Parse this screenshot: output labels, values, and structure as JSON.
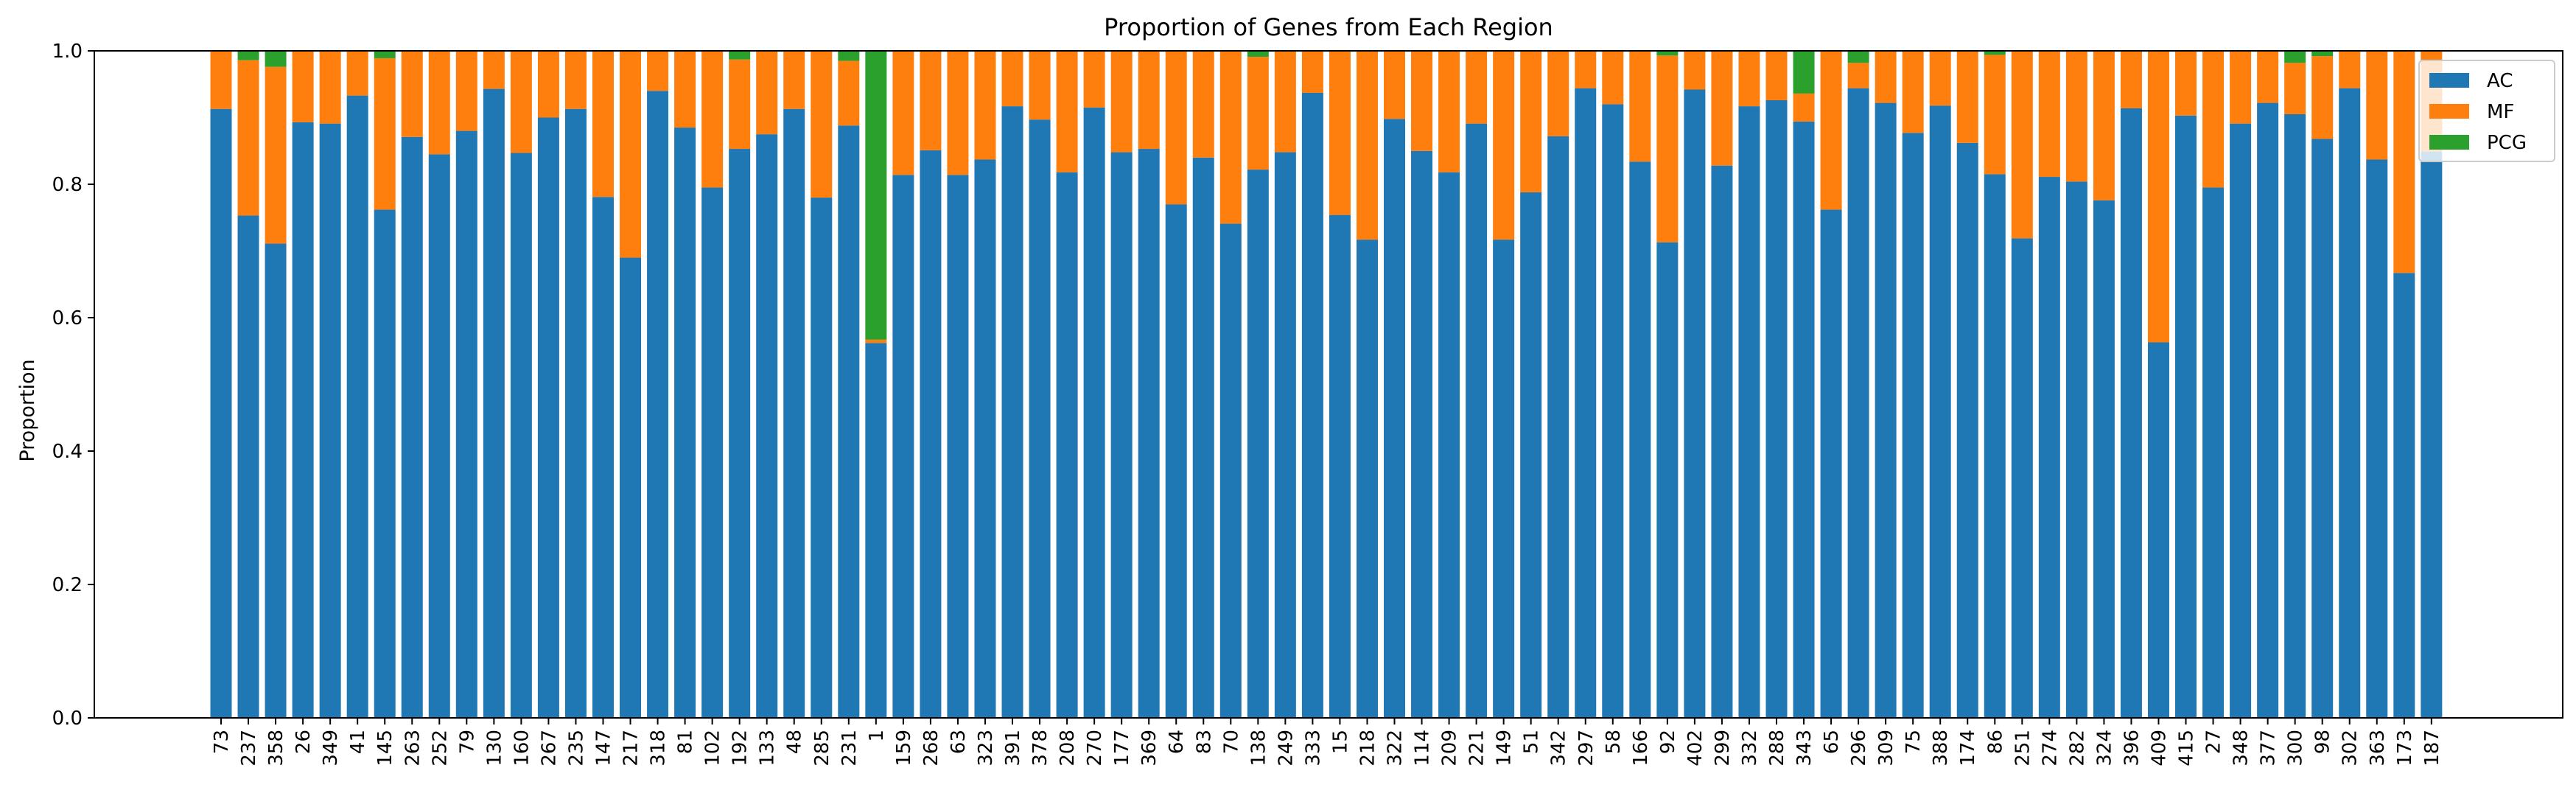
{
  "chart_data": {
    "type": "bar",
    "stacked": true,
    "title": "Proportion of Genes from Each Region",
    "xlabel": "",
    "ylabel": "Proportion",
    "ylim": [
      0,
      1.0
    ],
    "yticks": [
      0.0,
      0.2,
      0.4,
      0.6,
      0.8,
      1.0
    ],
    "ytick_labels": [
      "0.0",
      "0.2",
      "0.4",
      "0.6",
      "0.8",
      "1.0"
    ],
    "legend_position": "top-right",
    "grid": false,
    "categories": [
      "73",
      "237",
      "358",
      "26",
      "349",
      "41",
      "145",
      "263",
      "252",
      "79",
      "130",
      "160",
      "267",
      "235",
      "147",
      "217",
      "318",
      "81",
      "102",
      "192",
      "133",
      "48",
      "285",
      "231",
      "1",
      "159",
      "268",
      "63",
      "323",
      "391",
      "378",
      "208",
      "270",
      "177",
      "369",
      "64",
      "83",
      "70",
      "138",
      "249",
      "333",
      "15",
      "218",
      "322",
      "114",
      "209",
      "221",
      "149",
      "51",
      "342",
      "297",
      "58",
      "166",
      "92",
      "402",
      "299",
      "332",
      "288",
      "343",
      "65",
      "296",
      "309",
      "75",
      "388",
      "174",
      "86",
      "251",
      "274",
      "282",
      "324",
      "396",
      "409",
      "415",
      "27",
      "348",
      "377",
      "300",
      "98",
      "302",
      "363",
      "173",
      "187"
    ],
    "series": [
      {
        "name": "AC",
        "color": "#1f77b4",
        "values": [
          0.913,
          0.753,
          0.711,
          0.893,
          0.891,
          0.933,
          0.762,
          0.871,
          0.845,
          0.88,
          0.943,
          0.847,
          0.9,
          0.913,
          0.781,
          0.69,
          0.94,
          0.885,
          0.795,
          0.853,
          0.875,
          0.913,
          0.78,
          0.888,
          0.562,
          0.814,
          0.851,
          0.814,
          0.837,
          0.917,
          0.897,
          0.818,
          0.915,
          0.848,
          0.853,
          0.77,
          0.84,
          0.741,
          0.822,
          0.848,
          0.937,
          0.754,
          0.717,
          0.898,
          0.85,
          0.818,
          0.891,
          0.717,
          0.788,
          0.872,
          0.944,
          0.92,
          0.834,
          0.713,
          0.942,
          0.828,
          0.917,
          0.926,
          0.894,
          0.762,
          0.944,
          0.922,
          0.877,
          0.918,
          0.862,
          0.815,
          0.719,
          0.811,
          0.804,
          0.776,
          0.914,
          0.563,
          0.903,
          0.795,
          0.891,
          0.922,
          0.905,
          0.868,
          0.944,
          0.837,
          0.667,
          0.849
        ]
      },
      {
        "name": "MF",
        "color": "#ff7f0e",
        "values": [
          0.087,
          0.233,
          0.265,
          0.107,
          0.109,
          0.067,
          0.227,
          0.129,
          0.155,
          0.12,
          0.057,
          0.153,
          0.1,
          0.087,
          0.219,
          0.31,
          0.06,
          0.115,
          0.205,
          0.134,
          0.125,
          0.087,
          0.22,
          0.097,
          0.005,
          0.186,
          0.149,
          0.186,
          0.163,
          0.083,
          0.103,
          0.182,
          0.085,
          0.152,
          0.147,
          0.23,
          0.16,
          0.259,
          0.169,
          0.152,
          0.063,
          0.246,
          0.283,
          0.102,
          0.15,
          0.182,
          0.109,
          0.283,
          0.212,
          0.128,
          0.056,
          0.08,
          0.166,
          0.28,
          0.058,
          0.172,
          0.083,
          0.074,
          0.042,
          0.238,
          0.038,
          0.078,
          0.123,
          0.082,
          0.138,
          0.179,
          0.281,
          0.189,
          0.196,
          0.224,
          0.086,
          0.437,
          0.097,
          0.205,
          0.109,
          0.078,
          0.077,
          0.124,
          0.056,
          0.163,
          0.333,
          0.151
        ]
      },
      {
        "name": "PCG",
        "color": "#2ca02c",
        "values": [
          0,
          0.014,
          0.024,
          0,
          0,
          0,
          0.011,
          0,
          0,
          0,
          0,
          0,
          0,
          0,
          0,
          0,
          0,
          0,
          0,
          0.013,
          0,
          0,
          0,
          0.015,
          0.433,
          0,
          0,
          0,
          0,
          0,
          0,
          0,
          0,
          0,
          0,
          0,
          0,
          0,
          0.009,
          0,
          0,
          0,
          0,
          0,
          0,
          0,
          0,
          0,
          0,
          0,
          0,
          0,
          0,
          0.007,
          0,
          0,
          0,
          0,
          0.064,
          0,
          0.018,
          0,
          0,
          0,
          0,
          0.006,
          0,
          0,
          0,
          0,
          0,
          0,
          0,
          0,
          0,
          0,
          0.018,
          0.008,
          0,
          0,
          0,
          0
        ]
      }
    ]
  }
}
